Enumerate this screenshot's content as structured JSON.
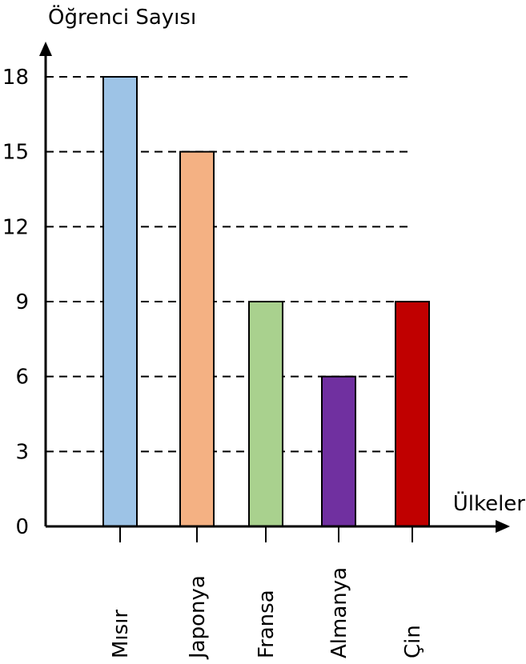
{
  "chart_data": {
    "type": "bar",
    "ylabel": "Öğrenci Sayısı",
    "xlabel": "Ülkeler",
    "categories": [
      "Mısır",
      "Japonya",
      "Fransa",
      "Almanya",
      "Çin"
    ],
    "values": [
      18,
      15,
      9,
      6,
      9
    ],
    "bar_colors": [
      "#9dc3e6",
      "#f4b183",
      "#a9d18e",
      "#7030a0",
      "#c00000"
    ],
    "yticks": [
      0,
      3,
      6,
      9,
      12,
      15,
      18
    ],
    "ylim": [
      0,
      18
    ],
    "grid": "dashed horizontal lines at y ticks"
  }
}
